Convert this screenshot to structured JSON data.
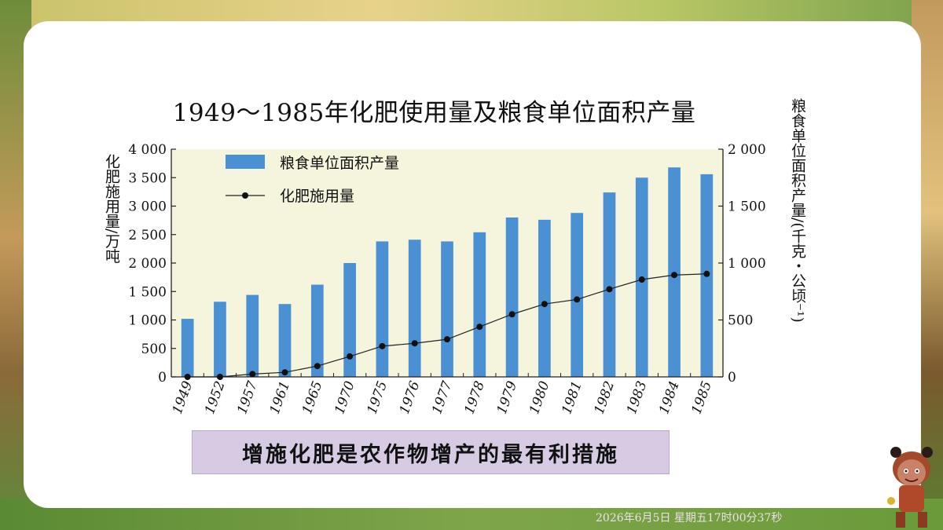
{
  "highlight_text": "增施化肥是农作物增产的最有利措施",
  "timestamp": "2026年6月5日 星期五17时00分37秒",
  "colors": {
    "bar": "#4a90d2",
    "line": "#222222",
    "plot_bg": "#f5f4dc"
  },
  "chart_data": {
    "type": "bar",
    "title": "1949～1985年化肥使用量及粮食单位面积产量",
    "categories": [
      "1949",
      "1952",
      "1957",
      "1961",
      "1965",
      "1970",
      "1975",
      "1976",
      "1977",
      "1978",
      "1979",
      "1980",
      "1981",
      "1982",
      "1983",
      "1984",
      "1985"
    ],
    "ylabel": "化肥施用量/万吨",
    "ylabel_right": "粮食单位面积产量/(千克・公顷⁻¹)",
    "ylim": [
      0,
      4000
    ],
    "ylim_right": [
      0,
      2000
    ],
    "yticks": [
      "4 000",
      "3 500",
      "3 000",
      "2 500",
      "2 000",
      "1 500",
      "1 000",
      "500",
      "0"
    ],
    "yticks_right": [
      "2 000",
      "1 500",
      "1 000",
      "500",
      "0"
    ],
    "legend": {
      "placement": "top-left"
    },
    "series": [
      {
        "name": "粮食单位面积产量",
        "type": "bar",
        "axis": "right",
        "values": [
          510,
          660,
          720,
          640,
          810,
          1000,
          1190,
          1205,
          1190,
          1270,
          1400,
          1380,
          1440,
          1620,
          1750,
          1840,
          1780
        ]
      },
      {
        "name": "化肥施用量",
        "type": "line",
        "axis": "left",
        "values": [
          0,
          0,
          50,
          80,
          190,
          360,
          540,
          590,
          660,
          880,
          1100,
          1280,
          1360,
          1540,
          1710,
          1790,
          1810
        ]
      }
    ]
  }
}
